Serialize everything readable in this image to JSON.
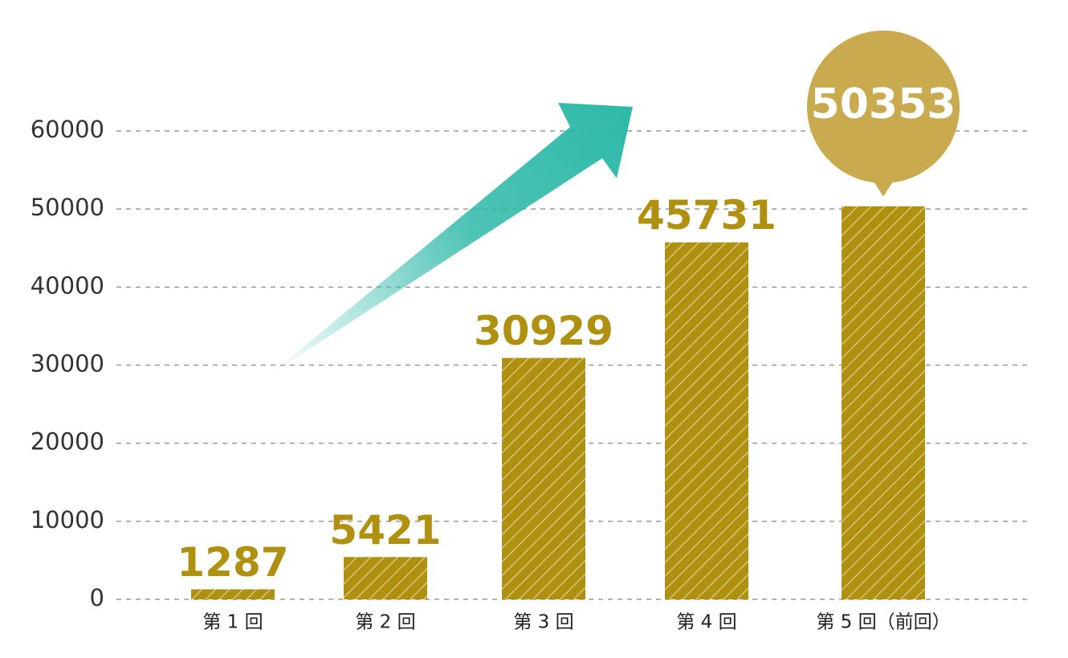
{
  "chart_data": {
    "type": "bar",
    "categories": [
      "第 1 回",
      "第 2 回",
      "第 3 回",
      "第 4 回",
      "第 5 回（前回）"
    ],
    "values": [
      1287,
      5421,
      30929,
      45731,
      50353
    ],
    "color": "#b0900f",
    "ylim": [
      0,
      60000
    ],
    "yticks": [
      0,
      10000,
      20000,
      30000,
      40000,
      50000,
      60000
    ],
    "grid": true
  }
}
